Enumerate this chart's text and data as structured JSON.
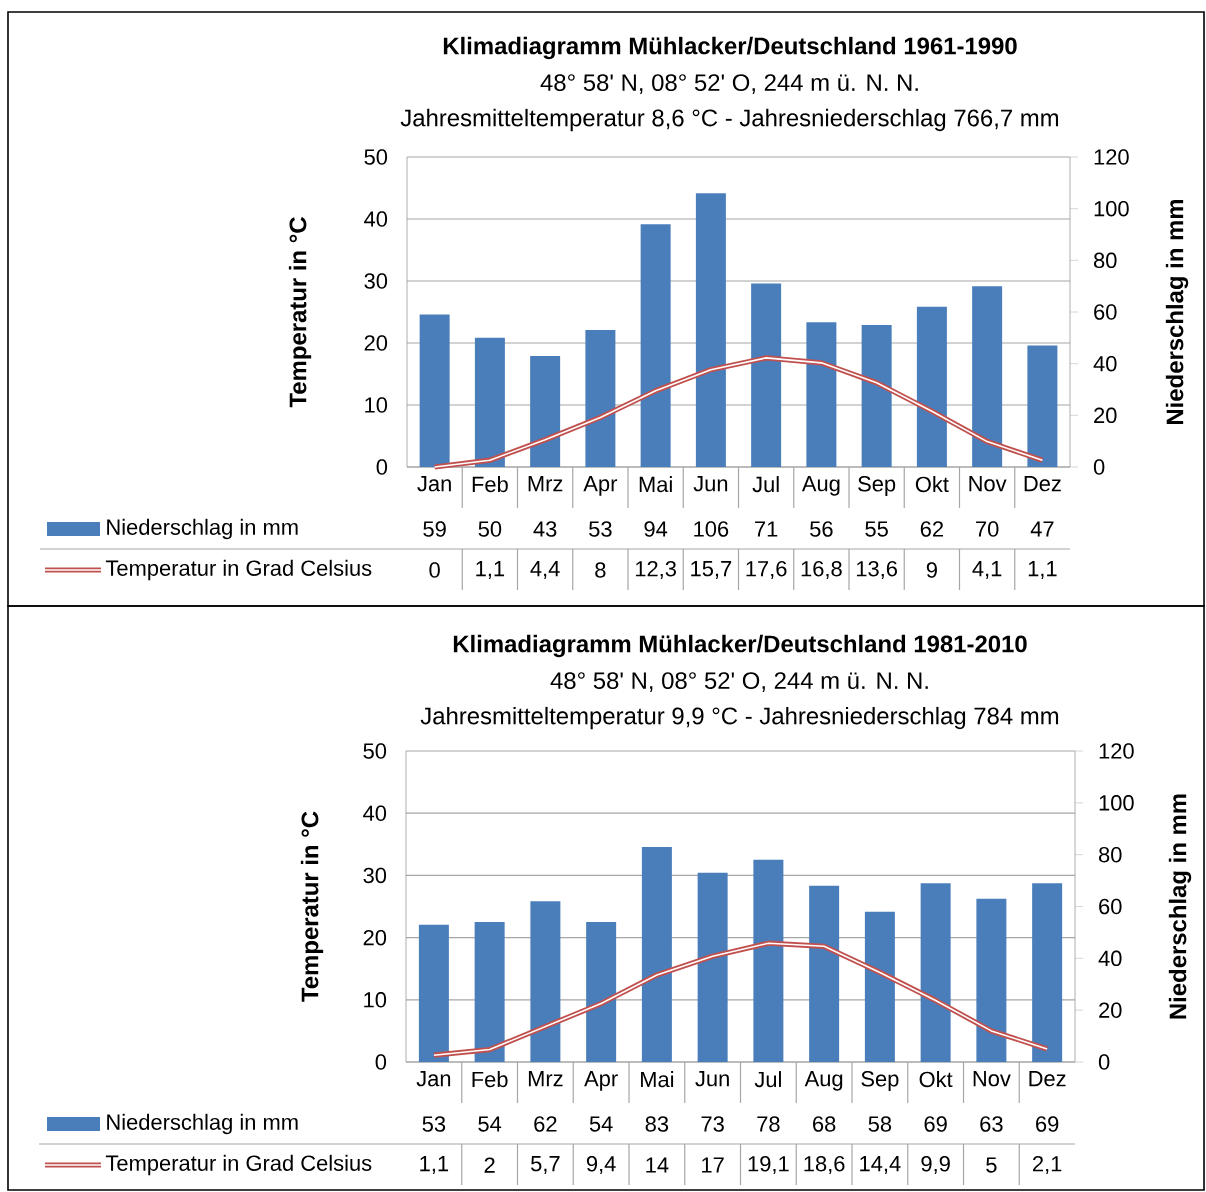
{
  "chart_data": [
    {
      "type": "bar",
      "title": "Klimadiagramm Mühlacker/Deutschland 1961-1990",
      "subtitle": "48° 58' N, 08° 52' O, 244 m ü. N. N.",
      "annotations": [
        "Jahresmitteltemperatur  8,6 °C - Jahresniederschlag 766,7 mm"
      ],
      "ylabel": "Temperatur in °C",
      "y2label": "Niederschlag in mm",
      "categories": [
        "Jan",
        "Feb",
        "Mrz",
        "Apr",
        "Mai",
        "Jun",
        "Jul",
        "Aug",
        "Sep",
        "Okt",
        "Nov",
        "Dez"
      ],
      "ylim": [
        0,
        50
      ],
      "yticks": [
        0,
        10,
        20,
        30,
        40,
        50
      ],
      "y2lim": [
        0,
        120
      ],
      "y2ticks": [
        0,
        20,
        40,
        60,
        80,
        100,
        120
      ],
      "grid": "y",
      "legend": "bottom",
      "series": [
        {
          "name": "Niederschlag in mm",
          "axis": "y2",
          "color": "#4a7ebb",
          "values": [
            59,
            50,
            43,
            53,
            94,
            106,
            71,
            56,
            55,
            62,
            70,
            47
          ],
          "value_labels": [
            "59",
            "50",
            "43",
            "53",
            "94",
            "106",
            "71",
            "56",
            "55",
            "62",
            "70",
            "47"
          ]
        },
        {
          "name": "Temperatur in Grad Celsius",
          "type": "line",
          "color": "#c0504d",
          "values": [
            0,
            1.1,
            4.4,
            8,
            12.3,
            15.7,
            17.6,
            16.8,
            13.6,
            9,
            4.1,
            1.1
          ],
          "value_labels": [
            "0",
            "1,1",
            "4,4",
            "8",
            "12,3",
            "15,7",
            "17,6",
            "16,8",
            "13,6",
            "9",
            "4,1",
            "1,1"
          ]
        }
      ]
    },
    {
      "type": "bar",
      "title": "Klimadiagramm Mühlacker/Deutschland 1981-2010",
      "subtitle": "48° 58' N, 08° 52' O, 244 m ü. N. N.",
      "annotations": [
        "Jahresmitteltemperatur  9,9 °C - Jahresniederschlag 784 mm"
      ],
      "ylabel": "Temperatur in °C",
      "y2label": "Niederschlag in mm",
      "categories": [
        "Jan",
        "Feb",
        "Mrz",
        "Apr",
        "Mai",
        "Jun",
        "Jul",
        "Aug",
        "Sep",
        "Okt",
        "Nov",
        "Dez"
      ],
      "ylim": [
        0,
        50
      ],
      "yticks": [
        0,
        10,
        20,
        30,
        40,
        50
      ],
      "y2lim": [
        0,
        120
      ],
      "y2ticks": [
        0,
        20,
        40,
        60,
        80,
        100,
        120
      ],
      "grid": "y",
      "legend": "bottom",
      "series": [
        {
          "name": "Niederschlag in mm",
          "axis": "y2",
          "color": "#4a7ebb",
          "values": [
            53,
            54,
            62,
            54,
            83,
            73,
            78,
            68,
            58,
            69,
            63,
            69
          ],
          "value_labels": [
            "53",
            "54",
            "62",
            "54",
            "83",
            "73",
            "78",
            "68",
            "58",
            "69",
            "63",
            "69"
          ]
        },
        {
          "name": "Temperatur in Grad Celsius",
          "type": "line",
          "color": "#c0504d",
          "values": [
            1.1,
            2,
            5.7,
            9.4,
            14,
            17,
            19.1,
            18.6,
            14.4,
            9.9,
            5,
            2.1
          ],
          "value_labels": [
            "1,1",
            "2",
            "5,7",
            "9,4",
            "14",
            "17",
            "19,1",
            "18,6",
            "14,4",
            "9,9",
            "5",
            "2,1"
          ]
        }
      ]
    }
  ]
}
